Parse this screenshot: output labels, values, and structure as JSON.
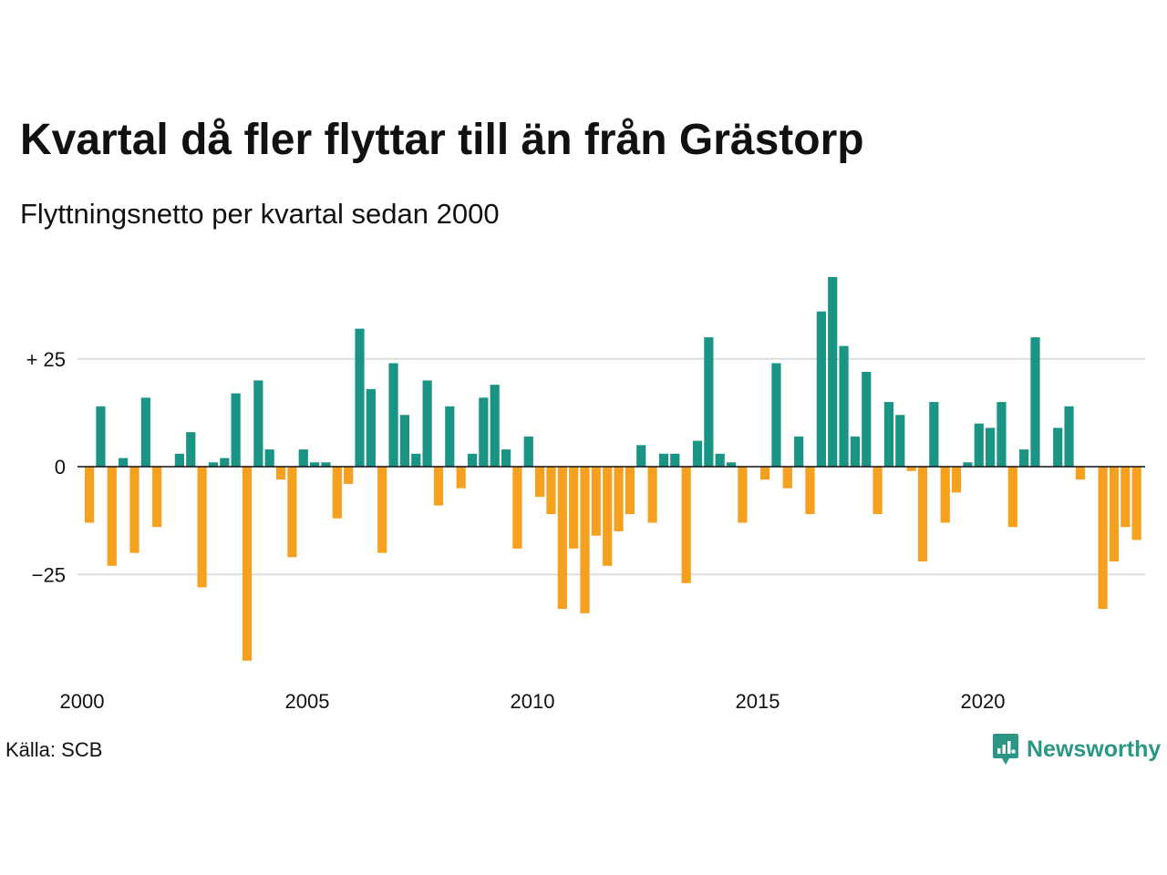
{
  "title": "Kvartal då fler flyttar till än från Grästorp",
  "subtitle": "Flyttningsnetto per kvartal sedan 2000",
  "source": "Källa: SCB",
  "brand": {
    "name": "Newsworthy",
    "icon": "newsworthy-logo-icon",
    "color": "#2b9686"
  },
  "colors": {
    "positive": "#1a9485",
    "negative": "#f5a11f",
    "grid": "#dddddd",
    "zero_line": "#111111"
  },
  "chart_data": {
    "type": "bar",
    "title": "Kvartal då fler flyttar till än från Grästorp",
    "subtitle": "Flyttningsnetto per kvartal sedan 2000",
    "xlabel": "",
    "ylabel": "",
    "grid": true,
    "x_tick_labels": [
      "2000",
      "2005",
      "2010",
      "2015",
      "2020"
    ],
    "y_ticks": [
      {
        "value": 25,
        "label": "+ 25"
      },
      {
        "value": 0,
        "label": "0"
      },
      {
        "value": -25,
        "label": "−25"
      }
    ],
    "ylim": [
      -48,
      46
    ],
    "start_year": 2000,
    "values": [
      -13,
      14,
      -23,
      2,
      -20,
      16,
      -14,
      0,
      3,
      8,
      -28,
      1,
      2,
      17,
      -45,
      20,
      4,
      -3,
      -21,
      4,
      1,
      1,
      -12,
      -4,
      32,
      18,
      -20,
      24,
      12,
      3,
      20,
      -9,
      14,
      -5,
      3,
      16,
      19,
      4,
      -19,
      7,
      -7,
      -11,
      -33,
      -19,
      -34,
      -16,
      -23,
      -15,
      -11,
      5,
      -13,
      3,
      3,
      -27,
      6,
      30,
      3,
      1,
      -13,
      0,
      -3,
      24,
      -5,
      7,
      -11,
      36,
      44,
      28,
      7,
      22,
      -11,
      15,
      12,
      -1,
      -22,
      15,
      -13,
      -6,
      1,
      10,
      9,
      15,
      -14,
      4,
      30,
      0,
      9,
      14,
      -3,
      0,
      -33,
      -22,
      -14,
      -17
    ]
  }
}
